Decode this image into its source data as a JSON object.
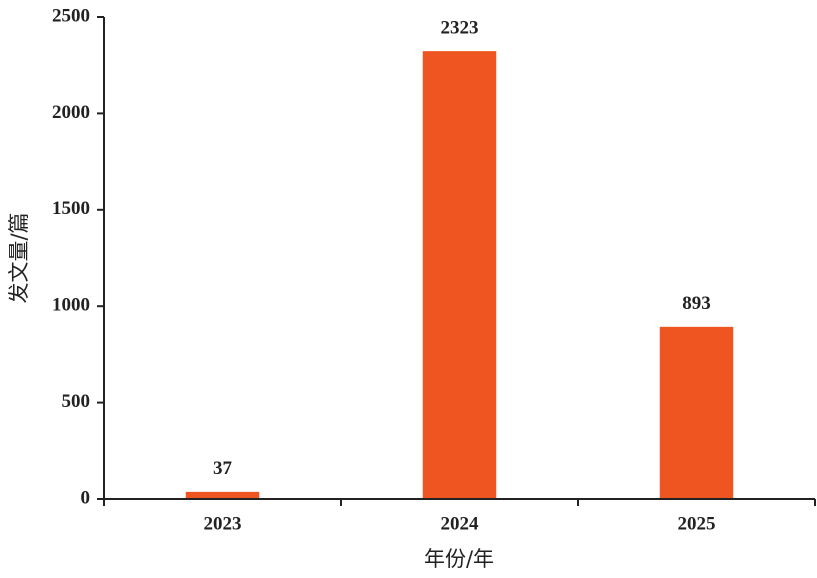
{
  "chart_data": {
    "type": "bar",
    "x_label": "年份/年",
    "y_label": "发文量/篇",
    "categories": [
      "2023",
      "2024",
      "2025"
    ],
    "values": [
      37,
      2323,
      893
    ],
    "color": "#ee5520",
    "ylim": [
      0,
      2500
    ],
    "yticks": [
      0,
      500,
      1000,
      1500,
      2000,
      2500
    ],
    "grid": false,
    "data_labels": true
  }
}
